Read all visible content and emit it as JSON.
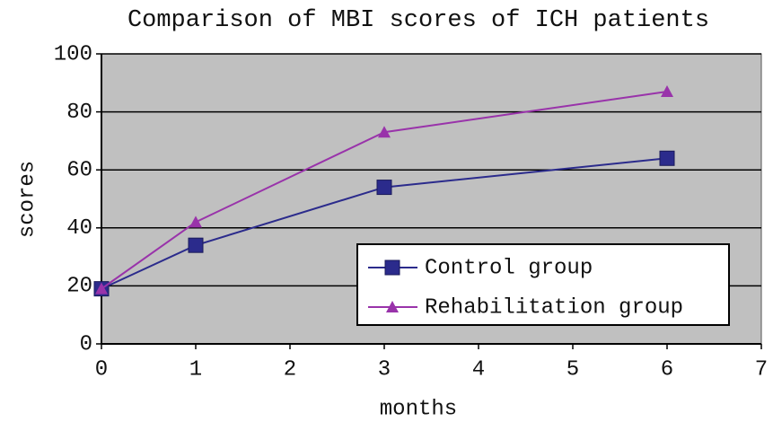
{
  "chart_data": {
    "type": "line",
    "title": "Comparison of MBI scores of ICH patients",
    "x_label": "months",
    "y_label": "scores",
    "x": [
      0,
      1,
      3,
      6
    ],
    "series": [
      {
        "name": "Control group",
        "color": "#2b2b8c",
        "marker": "square",
        "values": [
          19,
          34,
          54,
          64
        ]
      },
      {
        "name": "Rehabilitation group",
        "color": "#9933aa",
        "marker": "triangle",
        "values": [
          19,
          42,
          73,
          87
        ]
      }
    ],
    "xlim": [
      0,
      7
    ],
    "xticks": [
      0,
      1,
      2,
      3,
      4,
      5,
      6,
      7
    ],
    "ylim": [
      0,
      100
    ],
    "yticks": [
      0,
      20,
      40,
      60,
      80,
      100
    ],
    "grid": true,
    "legend": "lower right"
  }
}
